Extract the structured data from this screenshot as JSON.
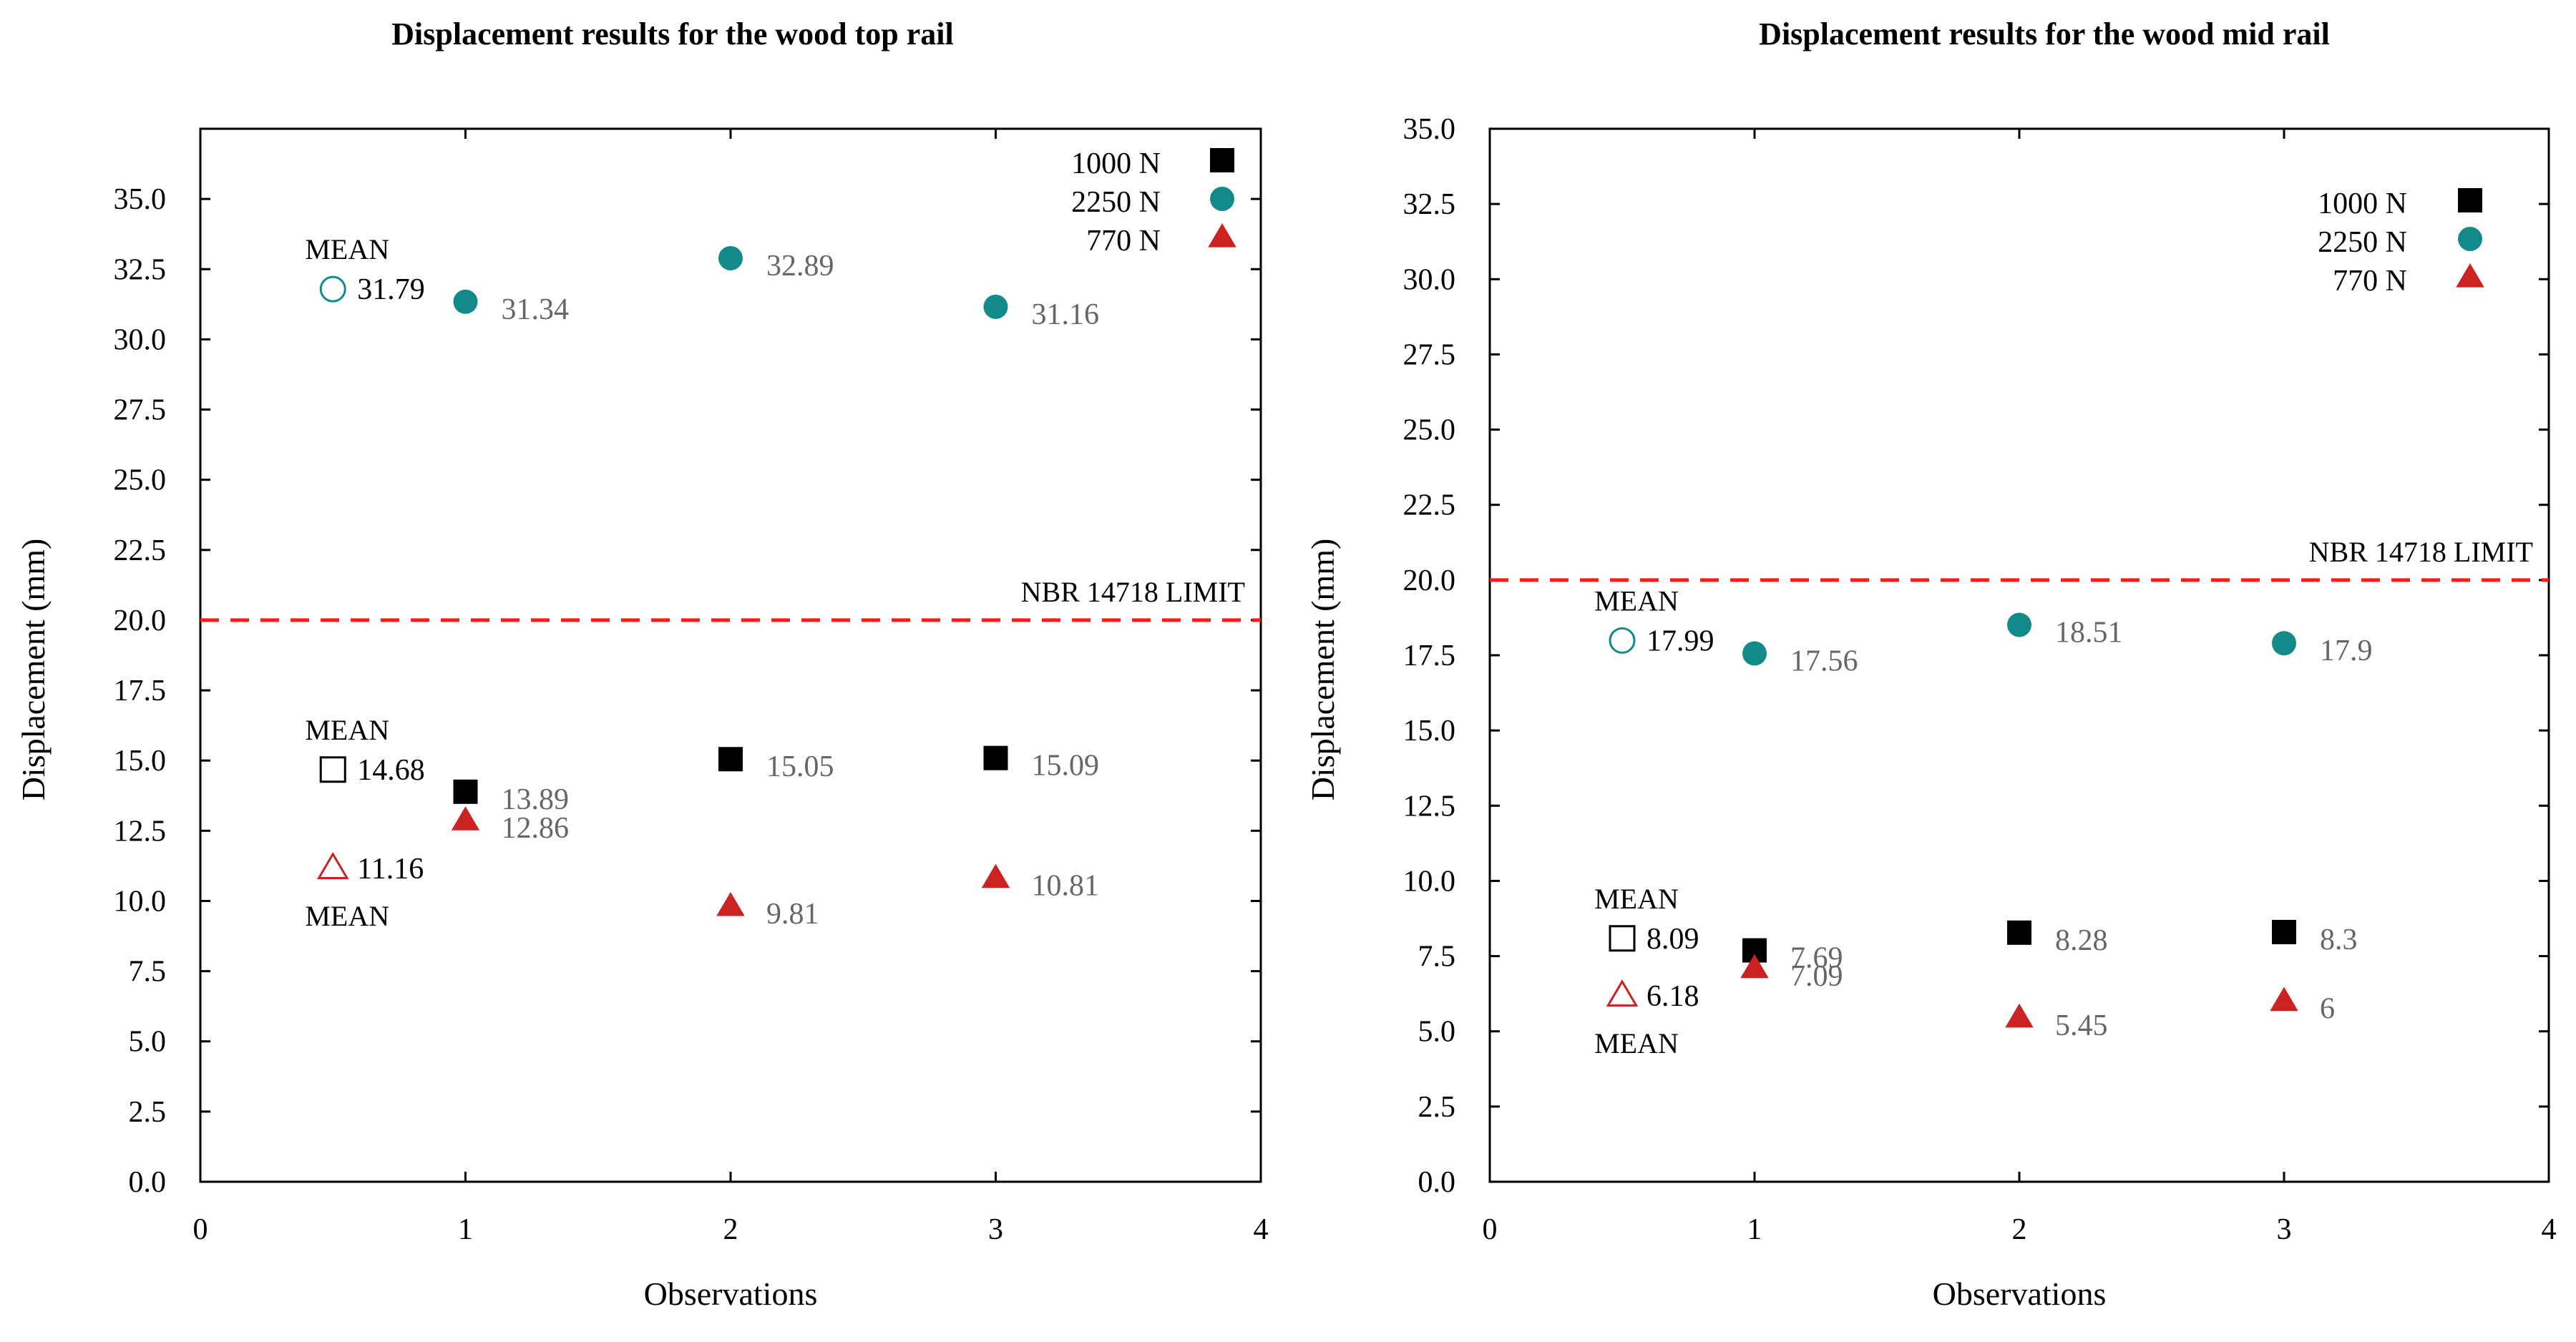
{
  "colors": {
    "n1000": "#000000",
    "n2250": "#138a8a",
    "n770": "#cc2222",
    "limit": "#ff1a1a",
    "value_label": "#666666"
  },
  "chart_data": [
    {
      "type": "scatter",
      "title": "Displacement results for the wood top rail",
      "xlabel": "Observations",
      "ylabel": "Displacement (mm)",
      "xlim": [
        0,
        4
      ],
      "ylim": [
        0,
        37.5
      ],
      "x_ticks": [
        "0",
        "1",
        "2",
        "3",
        "4"
      ],
      "y_ticks": [
        "0.0",
        "2.5",
        "5.0",
        "7.5",
        "10.0",
        "12.5",
        "15.0",
        "17.5",
        "20.0",
        "22.5",
        "25.0",
        "27.5",
        "30.0",
        "32.5",
        "35.0"
      ],
      "legend_position": "top-right",
      "legend": [
        "1000 N",
        "2250 N",
        "770 N"
      ],
      "limit_line": {
        "label": "NBR 14718 LIMIT",
        "y": 20.0
      },
      "series": [
        {
          "name": "1000 N",
          "marker": "square",
          "x": [
            1,
            2,
            3
          ],
          "y": [
            13.89,
            15.05,
            15.09
          ],
          "labels": [
            "13.89",
            "15.05",
            "15.09"
          ]
        },
        {
          "name": "2250 N",
          "marker": "circle",
          "x": [
            1,
            2,
            3
          ],
          "y": [
            31.34,
            32.89,
            31.16
          ],
          "labels": [
            "31.34",
            "32.89",
            "31.16"
          ]
        },
        {
          "name": "770 N",
          "marker": "triangle",
          "x": [
            1,
            2,
            3
          ],
          "y": [
            12.86,
            9.81,
            10.81
          ],
          "labels": [
            "12.86",
            "9.81",
            "10.81"
          ]
        }
      ],
      "means": [
        {
          "series": "2250 N",
          "marker": "circle",
          "x": 0.5,
          "y": 31.79,
          "label": "31.79",
          "word": "MEAN",
          "word_pos": "above"
        },
        {
          "series": "1000 N",
          "marker": "square",
          "x": 0.5,
          "y": 14.68,
          "label": "14.68",
          "word": "MEAN",
          "word_pos": "above"
        },
        {
          "series": "770 N",
          "marker": "triangle",
          "x": 0.5,
          "y": 11.16,
          "label": "11.16",
          "word": "MEAN",
          "word_pos": "below"
        }
      ]
    },
    {
      "type": "scatter",
      "title": "Displacement results for the wood mid rail",
      "xlabel": "Observations",
      "ylabel": "Displacement (mm)",
      "xlim": [
        0,
        4
      ],
      "ylim": [
        0,
        35
      ],
      "x_ticks": [
        "0",
        "1",
        "2",
        "3",
        "4"
      ],
      "y_ticks": [
        "0.0",
        "2.5",
        "5.0",
        "7.5",
        "10.0",
        "12.5",
        "15.0",
        "17.5",
        "20.0",
        "22.5",
        "25.0",
        "27.5",
        "30.0",
        "32.5",
        "35.0"
      ],
      "legend_position": "top-right",
      "legend": [
        "1000 N",
        "2250 N",
        "770 N"
      ],
      "limit_line": {
        "label": "NBR 14718 LIMIT",
        "y": 20.0
      },
      "series": [
        {
          "name": "1000 N",
          "marker": "square",
          "x": [
            1,
            2,
            3
          ],
          "y": [
            7.69,
            8.28,
            8.3
          ],
          "labels": [
            "7.69",
            "8.28",
            "8.3"
          ]
        },
        {
          "name": "2250 N",
          "marker": "circle",
          "x": [
            1,
            2,
            3
          ],
          "y": [
            17.56,
            18.51,
            17.9
          ],
          "labels": [
            "17.56",
            "18.51",
            "17.9"
          ]
        },
        {
          "name": "770 N",
          "marker": "triangle",
          "x": [
            1,
            2,
            3
          ],
          "y": [
            7.09,
            5.45,
            6
          ],
          "labels": [
            "7.09",
            "5.45",
            "6"
          ]
        }
      ],
      "means": [
        {
          "series": "2250 N",
          "marker": "circle",
          "x": 0.5,
          "y": 17.99,
          "label": "17.99",
          "word": "MEAN",
          "word_pos": "above"
        },
        {
          "series": "1000 N",
          "marker": "square",
          "x": 0.5,
          "y": 8.09,
          "label": "8.09",
          "word": "MEAN",
          "word_pos": "above"
        },
        {
          "series": "770 N",
          "marker": "triangle",
          "x": 0.5,
          "y": 6.18,
          "label": "6.18",
          "word": "MEAN",
          "word_pos": "below"
        }
      ]
    }
  ]
}
